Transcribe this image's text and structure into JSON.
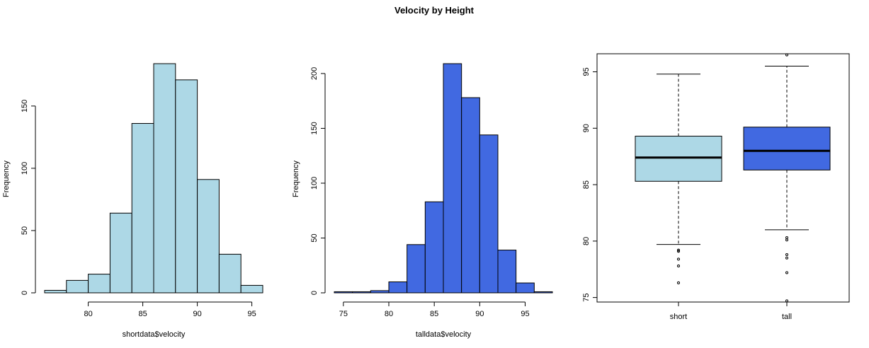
{
  "figure": {
    "title": "Velocity by Height"
  },
  "chart_data": [
    {
      "type": "bar",
      "subtype": "histogram",
      "title": "",
      "xlabel": "shortdata$velocity",
      "ylabel": "Frequency",
      "bin_width": 2,
      "bins": [
        {
          "start": 76,
          "end": 78,
          "count": 2
        },
        {
          "start": 78,
          "end": 80,
          "count": 10
        },
        {
          "start": 80,
          "end": 82,
          "count": 15
        },
        {
          "start": 82,
          "end": 84,
          "count": 64
        },
        {
          "start": 84,
          "end": 86,
          "count": 136
        },
        {
          "start": 86,
          "end": 88,
          "count": 184
        },
        {
          "start": 88,
          "end": 90,
          "count": 171
        },
        {
          "start": 90,
          "end": 92,
          "count": 91
        },
        {
          "start": 92,
          "end": 94,
          "count": 31
        },
        {
          "start": 94,
          "end": 96,
          "count": 6
        }
      ],
      "xlim": [
        76,
        96
      ],
      "ylim": [
        0,
        184
      ],
      "xticks": [
        80,
        85,
        90,
        95
      ],
      "yticks": [
        0,
        50,
        100,
        150
      ],
      "fill_color": "#add8e6",
      "grid": false,
      "legend": "none"
    },
    {
      "type": "bar",
      "subtype": "histogram",
      "title": "",
      "xlabel": "talldata$velocity",
      "ylabel": "Frequency",
      "bin_width": 2,
      "bins": [
        {
          "start": 74,
          "end": 76,
          "count": 1
        },
        {
          "start": 76,
          "end": 78,
          "count": 1
        },
        {
          "start": 78,
          "end": 80,
          "count": 2
        },
        {
          "start": 80,
          "end": 82,
          "count": 10
        },
        {
          "start": 82,
          "end": 84,
          "count": 44
        },
        {
          "start": 84,
          "end": 86,
          "count": 83
        },
        {
          "start": 86,
          "end": 88,
          "count": 209
        },
        {
          "start": 88,
          "end": 90,
          "count": 178
        },
        {
          "start": 90,
          "end": 92,
          "count": 144
        },
        {
          "start": 92,
          "end": 94,
          "count": 39
        },
        {
          "start": 94,
          "end": 96,
          "count": 9
        },
        {
          "start": 96,
          "end": 98,
          "count": 1
        }
      ],
      "xlim": [
        74,
        98
      ],
      "ylim": [
        0,
        209
      ],
      "xticks": [
        75,
        80,
        85,
        90,
        95
      ],
      "yticks": [
        0,
        50,
        100,
        150,
        200
      ],
      "fill_color": "#4169e1",
      "grid": false,
      "legend": "none"
    },
    {
      "type": "box",
      "title": "",
      "xlabel": "",
      "ylabel": "",
      "ylim": [
        74.6,
        96.6
      ],
      "yticks": [
        75,
        80,
        85,
        90,
        95
      ],
      "groups": [
        {
          "label": "short",
          "whisker_low": 79.7,
          "q1": 85.3,
          "median": 87.4,
          "q3": 89.3,
          "whisker_high": 94.8,
          "outliers": [
            79.1,
            79.2,
            78.4,
            77.8,
            76.3
          ],
          "fill_color": "#add8e6"
        },
        {
          "label": "tall",
          "whisker_low": 81.0,
          "q1": 86.3,
          "median": 88.0,
          "q3": 90.1,
          "whisker_high": 95.5,
          "outliers": [
            96.5,
            80.3,
            80.1,
            78.8,
            78.5,
            77.2,
            74.7
          ],
          "fill_color": "#4169e1"
        }
      ],
      "grid": false,
      "legend": "none"
    }
  ]
}
